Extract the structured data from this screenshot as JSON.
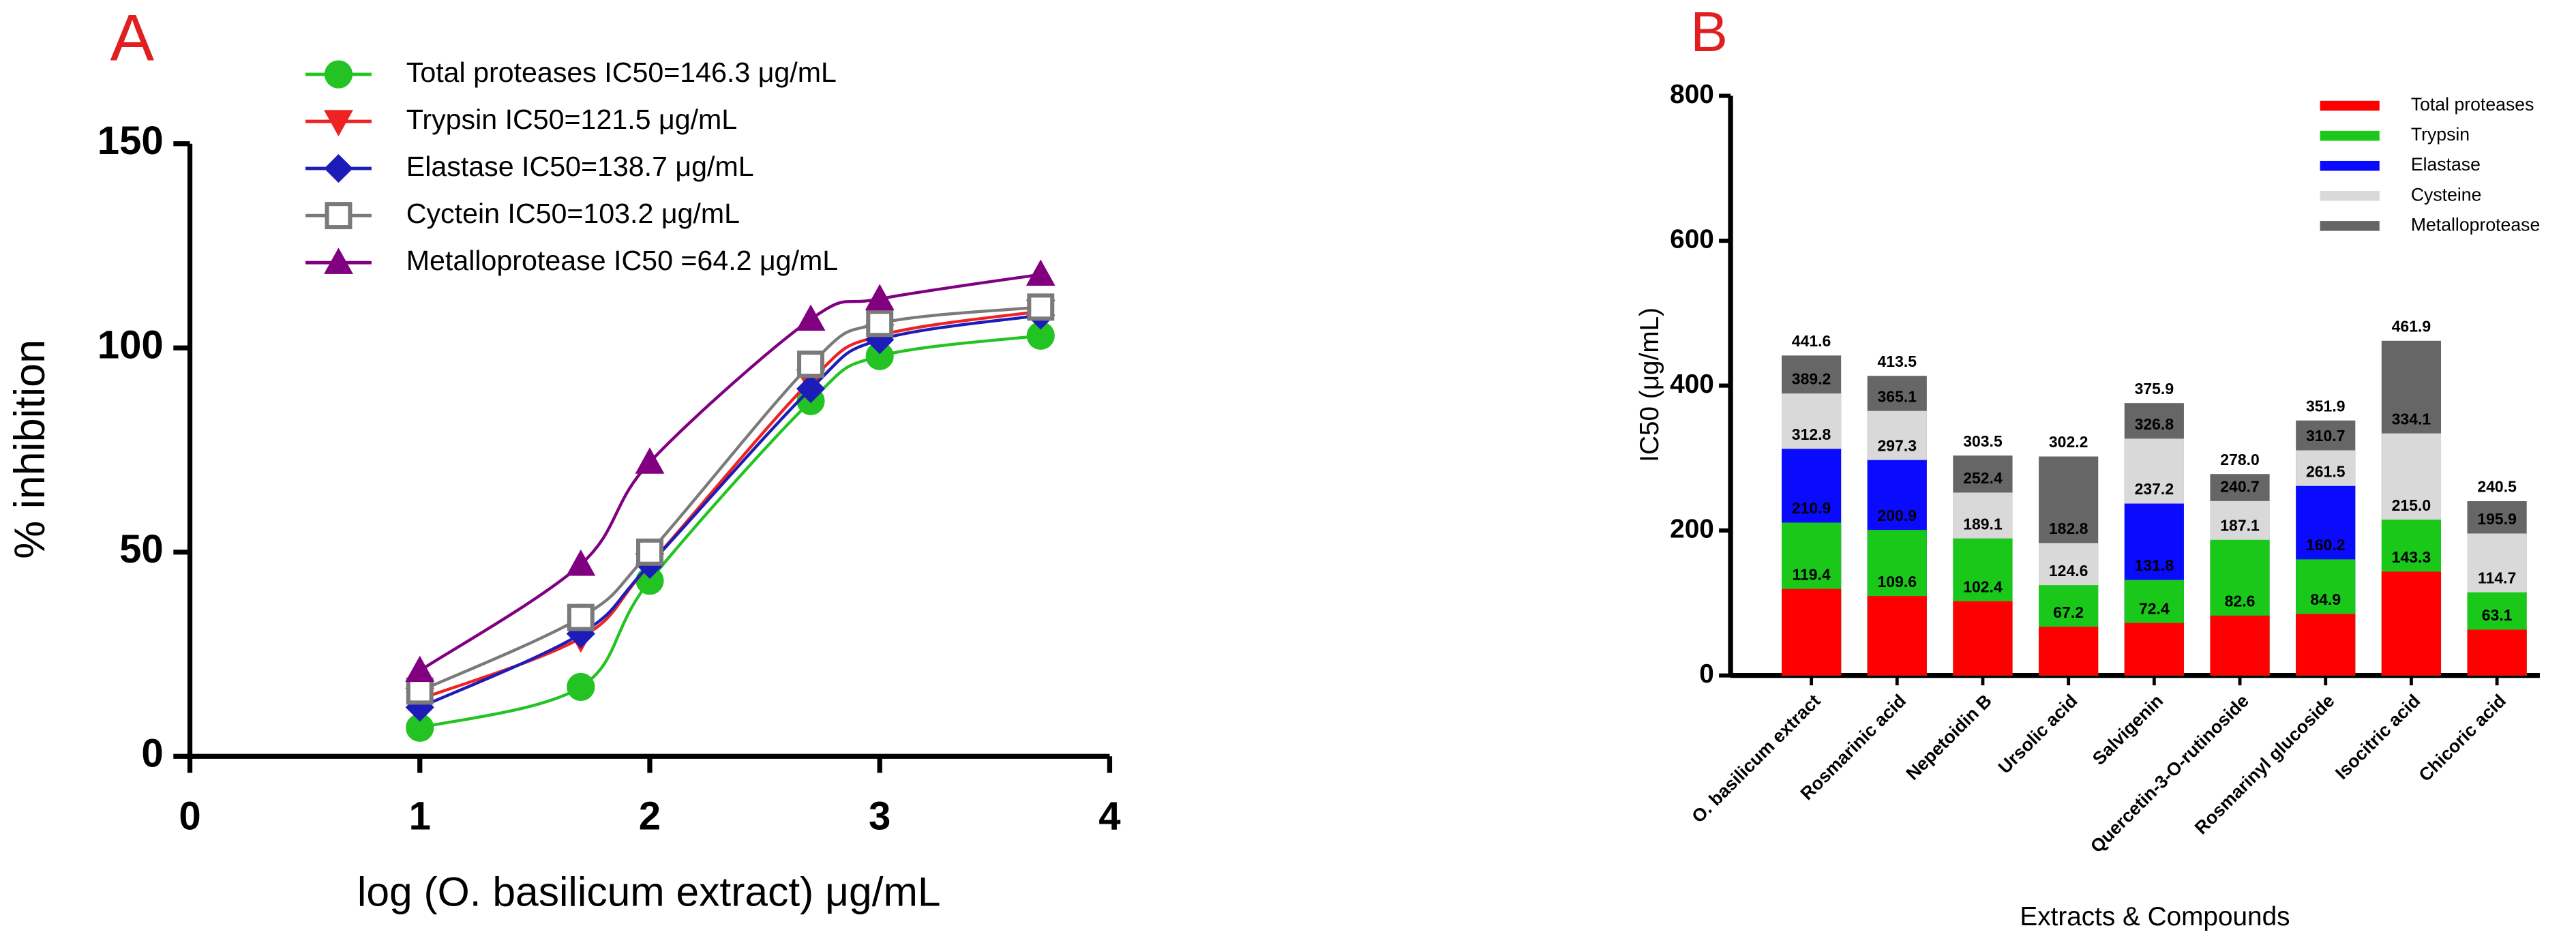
{
  "chart_data": [
    {
      "type": "line",
      "panel_label": "A",
      "x_label": "log (O. basilicum extract) μg/mL",
      "y_label": "% inhibition",
      "xlim": [
        0,
        4
      ],
      "xticks": [
        0,
        1,
        2,
        3,
        4
      ],
      "ylim": [
        0,
        150
      ],
      "yticks": [
        0,
        50,
        100,
        150
      ],
      "x": [
        1,
        1.7,
        2,
        2.7,
        3,
        3.7
      ],
      "series": [
        {
          "name": "Total proteases IC50=146.3 μg/mL",
          "color": "#22c322",
          "marker": "circle",
          "values": [
            7,
            17,
            43,
            87,
            98,
            103
          ]
        },
        {
          "name": "Trypsin IC50=121.5 μg/mL",
          "color": "#ee2222",
          "marker": "triangle-down",
          "values": [
            14,
            29,
            47,
            92,
            103,
            109
          ]
        },
        {
          "name": "Elastase IC50=138.7 μg/mL",
          "color": "#1c1cb8",
          "marker": "diamond",
          "values": [
            12,
            30,
            47,
            90,
            102,
            108
          ]
        },
        {
          "name": "Cyctein IC50=103.2 μg/mL",
          "color": "#7a7a7a",
          "marker": "square-open",
          "values": [
            16,
            34,
            50,
            96,
            106,
            110
          ]
        },
        {
          "name": "Metalloprotease IC50 =64.2 μg/mL",
          "color": "#800080",
          "marker": "triangle-up",
          "values": [
            21,
            47,
            72,
            107,
            112,
            118
          ]
        }
      ]
    },
    {
      "type": "bar",
      "panel_label": "B",
      "x_label": "Extracts & Compounds",
      "y_label": "IC50 (μg/mL)",
      "ylim": [
        0,
        800
      ],
      "yticks": [
        0,
        200,
        400,
        600,
        800
      ],
      "categories": [
        "O. basilicum extract",
        "Rosmarinic acid",
        "Nepetoidin B",
        "Ursolic acid",
        "Salvigenin",
        "Quercetin-3-O-rutinoside",
        "Rosmarinyl glucoside",
        "Isocitric acid",
        "Chicoric acid"
      ],
      "series": [
        {
          "name": "Total proteases",
          "color": "#ff0000",
          "values": [
            119.4,
            109.6,
            102.4,
            67.2,
            72.4,
            82.6,
            84.9,
            143.3,
            63.1
          ]
        },
        {
          "name": "Trypsin",
          "color": "#19c819",
          "values": [
            210.9,
            200.9,
            189.1,
            124.6,
            131.8,
            187.1,
            160.2,
            215.0,
            114.7
          ]
        },
        {
          "name": "Elastase",
          "color": "#0a0aff",
          "values": [
            312.8,
            297.3,
            null,
            null,
            237.2,
            null,
            261.5,
            null,
            null
          ]
        },
        {
          "name": "Cysteine",
          "color": "#d9d9d9",
          "values": [
            389.2,
            365.1,
            252.4,
            182.8,
            326.8,
            240.7,
            310.7,
            334.1,
            195.9
          ]
        },
        {
          "name": "Metalloprotease",
          "color": "#666666",
          "values": [
            441.6,
            413.5,
            303.5,
            302.2,
            375.9,
            278.0,
            351.9,
            461.9,
            240.5
          ]
        }
      ],
      "value_labels": [
        [
          "119.4",
          "109.6",
          "102.4",
          "67.2",
          "72.4",
          "82.6",
          "84.9",
          "143.3",
          "63.1"
        ],
        [
          "210.9",
          "200.9",
          "189.1",
          "124.6",
          "131.8",
          "187.1",
          "160.2",
          "215.0",
          "114.7"
        ],
        [
          "312.8",
          "297.3",
          null,
          null,
          "237.2",
          null,
          "261.5",
          null,
          null
        ],
        [
          "389.2",
          "365.1",
          "252.4",
          "182.8",
          "326.8",
          "240.7",
          "310.7",
          "334.1",
          "195.9"
        ],
        [
          "441.6",
          "413.5",
          "303.5",
          "302.2",
          "375.9",
          "278.0",
          "351.9",
          "461.9",
          "240.5"
        ]
      ]
    }
  ]
}
